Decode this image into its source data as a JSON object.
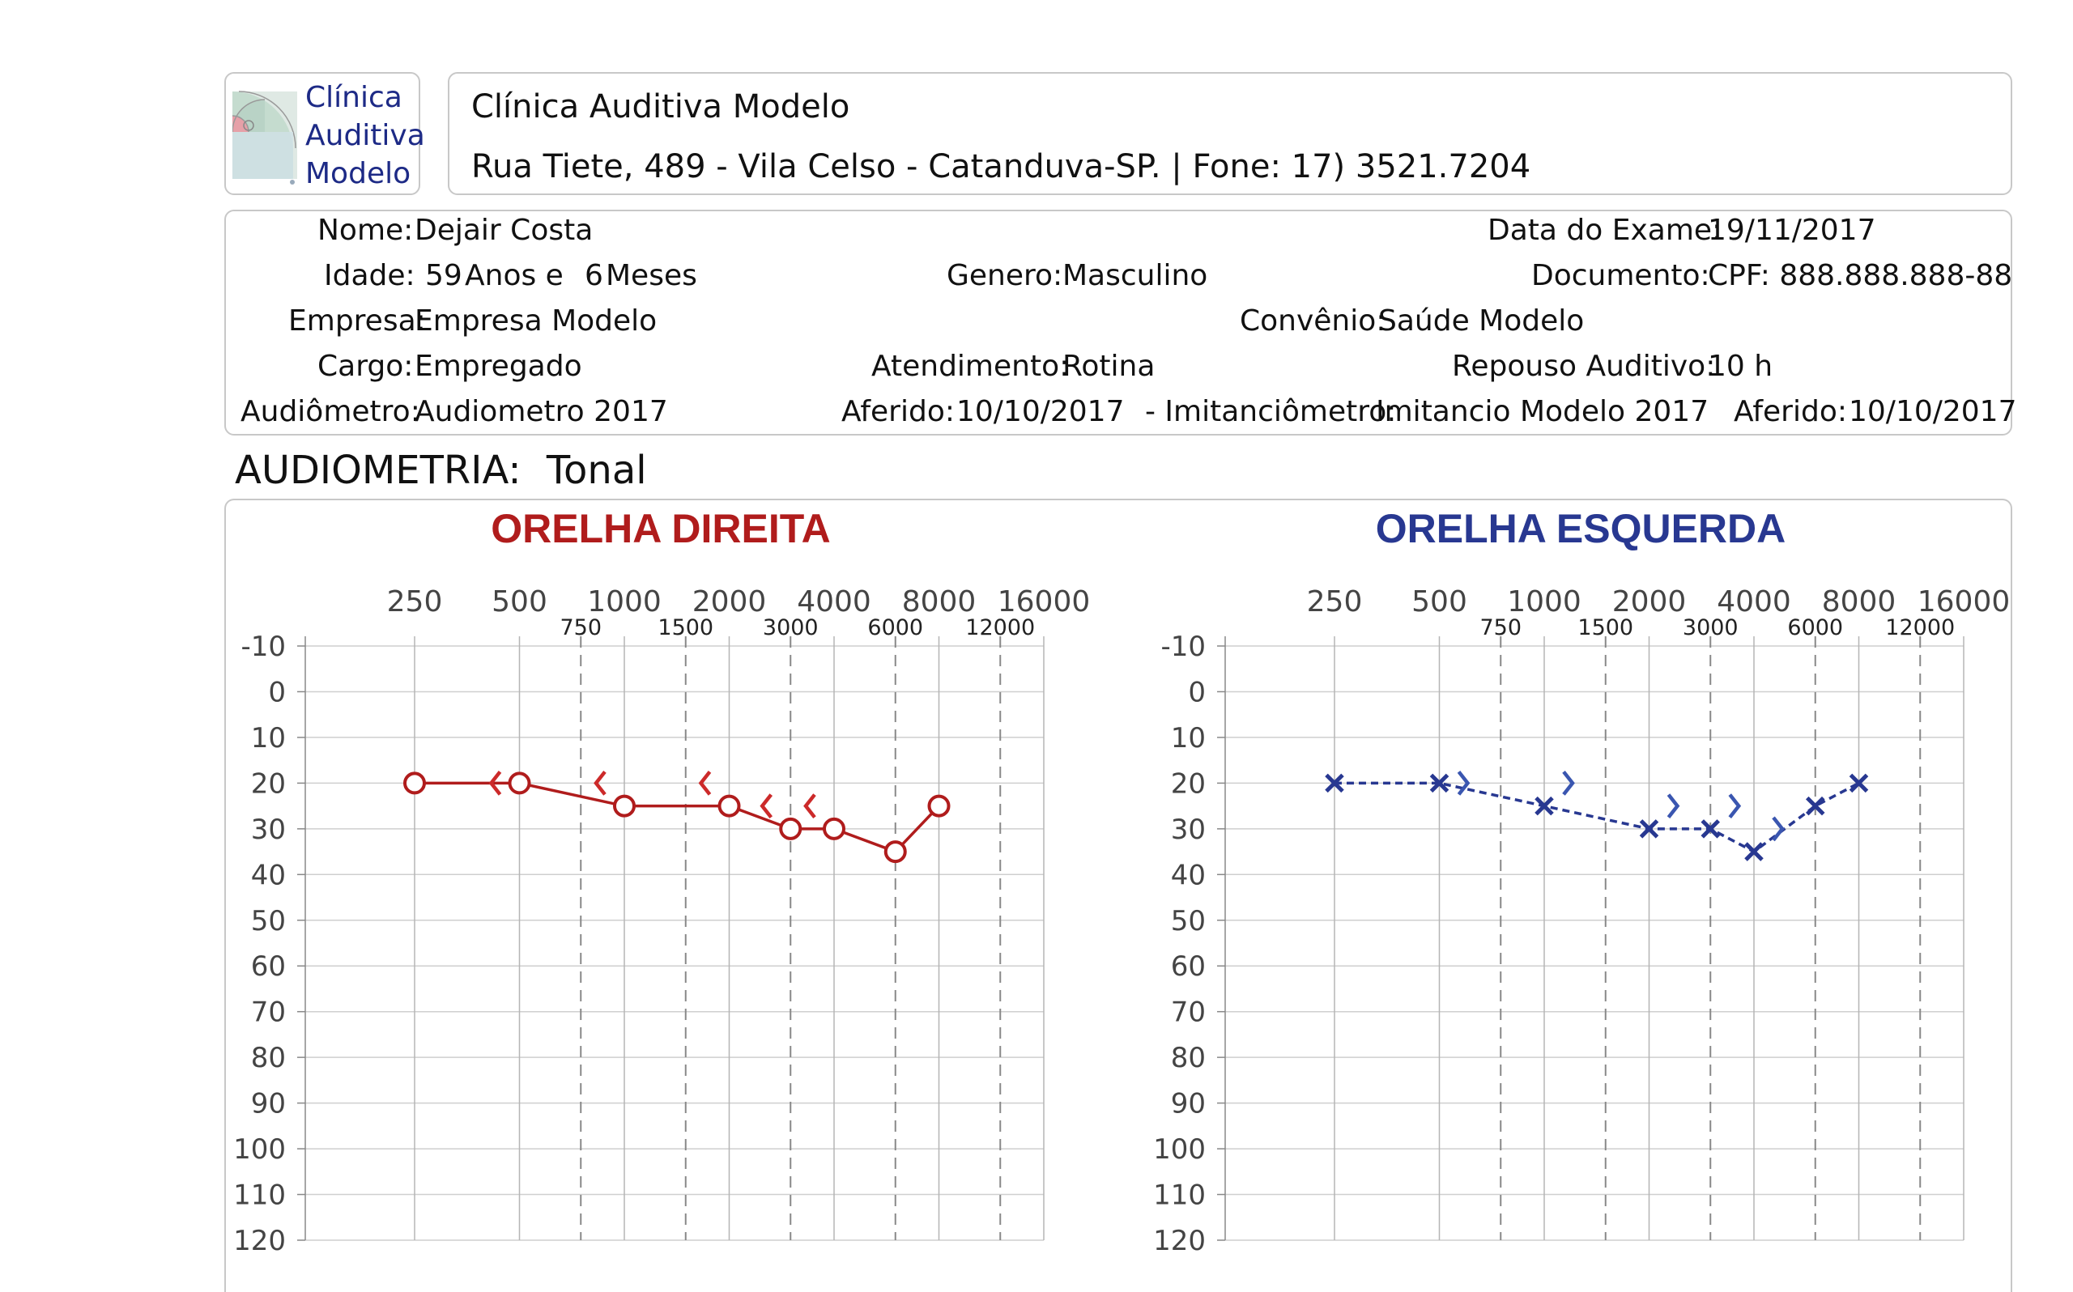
{
  "logo": {
    "lines": [
      "Clínica",
      "Auditiva",
      "Modelo"
    ]
  },
  "header": {
    "clinic_name": "Clínica Auditiva Modelo",
    "address": "Rua Tiete, 489 - Vila Celso - Catanduva-SP. | Fone: 17) 3521.7204"
  },
  "patient": {
    "nome_label": "Nome:",
    "nome": "Dejair Costa",
    "idade_label": "Idade:",
    "idade_anos": "59",
    "anos_label": "Anos e",
    "idade_meses": "6",
    "meses_label": "Meses",
    "genero_label": "Genero:",
    "genero": "Masculino",
    "data_exame_label": "Data do Exame:",
    "data_exame": "19/11/2017",
    "documento_label": "Documento:",
    "documento": "CPF: 888.888.888-88",
    "empresa_label": "Empresa:",
    "empresa": "Empresa Modelo",
    "convenio_label": "Convênio:",
    "convenio": "Saúde Modelo",
    "cargo_label": "Cargo:",
    "cargo": "Empregado",
    "atendimento_label": "Atendimento:",
    "atendimento": "Rotina",
    "repouso_label": "Repouso Auditivo:",
    "repouso": "10 h",
    "audiometro_label": "Audiômetro:",
    "audiometro": "Audiometro 2017",
    "aferido1_label": "Aferido:",
    "aferido1": "10/10/2017",
    "imitanciometro_label": "- Imitanciômetro:",
    "imitanciometro": "Imitancio Modelo 2017",
    "aferido2_label": "Aferido:",
    "aferido2": "10/10/2017"
  },
  "section": {
    "label": "AUDIOMETRIA:",
    "value": "Tonal"
  },
  "chart_data": [
    {
      "type": "line",
      "title": "ORELHA DIREITA",
      "color": "#b01c1c",
      "bone_color": "#cc2a2a",
      "marker": "circle",
      "bone_marker": "<",
      "line_style": "solid",
      "x_ticks_major": [
        250,
        500,
        1000,
        2000,
        4000,
        8000,
        16000
      ],
      "x_ticks_minor": [
        750,
        1500,
        3000,
        6000,
        12000
      ],
      "y_ticks": [
        -10,
        0,
        10,
        20,
        30,
        40,
        50,
        60,
        70,
        80,
        90,
        100,
        110,
        120
      ],
      "ylim": [
        -10,
        120
      ],
      "x_scale": "log",
      "grid": true,
      "air_conduction": {
        "x": [
          250,
          500,
          1000,
          2000,
          3000,
          4000,
          6000,
          8000
        ],
        "y": [
          20,
          20,
          25,
          25,
          30,
          30,
          35,
          25
        ]
      },
      "bone_conduction": {
        "x": [
          500,
          1000,
          2000,
          3000,
          4000
        ],
        "y": [
          20,
          20,
          20,
          25,
          25
        ]
      }
    },
    {
      "type": "line",
      "title": "ORELHA ESQUERDA",
      "color": "#283891",
      "bone_color": "#3a56b0",
      "marker": "x",
      "bone_marker": ">",
      "line_style": "dashed",
      "x_ticks_major": [
        250,
        500,
        1000,
        2000,
        4000,
        8000,
        16000
      ],
      "x_ticks_minor": [
        750,
        1500,
        3000,
        6000,
        12000
      ],
      "y_ticks": [
        -10,
        0,
        10,
        20,
        30,
        40,
        50,
        60,
        70,
        80,
        90,
        100,
        110,
        120
      ],
      "ylim": [
        -10,
        120
      ],
      "x_scale": "log",
      "grid": true,
      "air_conduction": {
        "x": [
          250,
          500,
          1000,
          2000,
          3000,
          4000,
          6000,
          8000
        ],
        "y": [
          20,
          20,
          25,
          30,
          30,
          35,
          25,
          20
        ]
      },
      "bone_conduction": {
        "x": [
          500,
          1000,
          2000,
          3000,
          4000
        ],
        "y": [
          20,
          20,
          25,
          25,
          30
        ]
      }
    }
  ]
}
